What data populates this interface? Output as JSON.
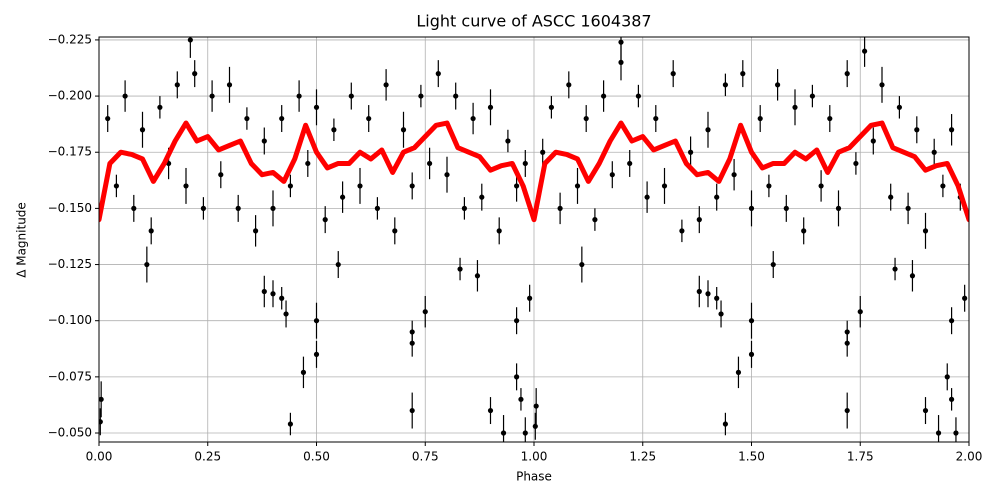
{
  "chart_data": {
    "type": "scatter",
    "title": "Light curve of ASCC 1604387",
    "xlabel": "Phase",
    "ylabel": "Δ Magnitude",
    "xlim": [
      0,
      2
    ],
    "ylim": [
      -0.046,
      -0.2263
    ],
    "xticks": [
      {
        "value": 0,
        "label": "0.00"
      },
      {
        "value": 0.25,
        "label": "0.25"
      },
      {
        "value": 0.5,
        "label": "0.50"
      },
      {
        "value": 0.75,
        "label": "0.75"
      },
      {
        "value": 1,
        "label": "1.00"
      },
      {
        "value": 1.25,
        "label": "1.25"
      },
      {
        "value": 1.5,
        "label": "1.50"
      },
      {
        "value": 1.75,
        "label": "1.75"
      },
      {
        "value": 2,
        "label": "2.00"
      }
    ],
    "yticks": [
      {
        "value": -0.225,
        "label": "−0.225"
      },
      {
        "value": -0.2,
        "label": "−0.200"
      },
      {
        "value": -0.175,
        "label": "−0.175"
      },
      {
        "value": -0.15,
        "label": "−0.150"
      },
      {
        "value": -0.125,
        "label": "−0.125"
      },
      {
        "value": -0.1,
        "label": "−0.100"
      },
      {
        "value": -0.075,
        "label": "−0.075"
      },
      {
        "value": -0.05,
        "label": "−0.050"
      }
    ],
    "grid": true,
    "series": [
      {
        "type": "scatter",
        "color": "#000000",
        "x": [
          0.02,
          0.04,
          0.06,
          0.08,
          0.1,
          0.12,
          0.14,
          0.16,
          0.18,
          0.2,
          0.22,
          0.24,
          0.26,
          0.28,
          0.3,
          0.32,
          0.34,
          0.36,
          0.38,
          0.4,
          0.42,
          0.44,
          0.46,
          0.48,
          0.5,
          0.52,
          0.54,
          0.56,
          0.58,
          0.6,
          0.62,
          0.64,
          0.66,
          0.68,
          0.7,
          0.72,
          0.74,
          0.76,
          0.78,
          0.8,
          0.82,
          0.84,
          0.86,
          0.88,
          0.9,
          0.92,
          0.94,
          0.96,
          0.98,
          0.005,
          0.003,
          0.44,
          0.47,
          0.5,
          0.5,
          0.4,
          0.42,
          0.38,
          0.43,
          0.72,
          0.72,
          0.72,
          0.75,
          0.9,
          0.93,
          0.96,
          0.97,
          0.98,
          0.96,
          0.11,
          0.55,
          0.83,
          0.87,
          0.99,
          0.21,
          1.02,
          1.04,
          1.06,
          1.08,
          1.1,
          1.12,
          1.14,
          1.16,
          1.18,
          1.2,
          1.22,
          1.24,
          1.26,
          1.28,
          1.3,
          1.32,
          1.34,
          1.36,
          1.38,
          1.4,
          1.42,
          1.44,
          1.46,
          1.48,
          1.5,
          1.52,
          1.54,
          1.56,
          1.58,
          1.6,
          1.62,
          1.64,
          1.66,
          1.68,
          1.7,
          1.72,
          1.74,
          1.76,
          1.78,
          1.8,
          1.82,
          1.84,
          1.86,
          1.88,
          1.9,
          1.92,
          1.94,
          1.96,
          1.98,
          1.005,
          1.003,
          1.44,
          1.47,
          1.5,
          1.5,
          1.4,
          1.42,
          1.38,
          1.43,
          1.72,
          1.72,
          1.72,
          1.75,
          1.9,
          1.93,
          1.95,
          1.96,
          1.97,
          1.96,
          1.11,
          1.55,
          1.83,
          1.87,
          1.99,
          1.2
        ],
        "values": [
          -0.19,
          -0.16,
          -0.2,
          -0.15,
          -0.185,
          -0.14,
          -0.195,
          -0.17,
          -0.205,
          -0.16,
          -0.21,
          -0.15,
          -0.2,
          -0.165,
          -0.205,
          -0.15,
          -0.19,
          -0.14,
          -0.18,
          -0.15,
          -0.19,
          -0.16,
          -0.2,
          -0.17,
          -0.195,
          -0.145,
          -0.185,
          -0.155,
          -0.2,
          -0.16,
          -0.19,
          -0.15,
          -0.205,
          -0.14,
          -0.185,
          -0.16,
          -0.2,
          -0.17,
          -0.21,
          -0.165,
          -0.2,
          -0.15,
          -0.19,
          -0.155,
          -0.195,
          -0.14,
          -0.18,
          -0.16,
          -0.17,
          -0.065,
          -0.055,
          -0.054,
          -0.077,
          -0.085,
          -0.1,
          -0.112,
          -0.11,
          -0.113,
          -0.103,
          -0.06,
          -0.09,
          -0.095,
          -0.104,
          -0.06,
          -0.05,
          -0.075,
          -0.065,
          -0.05,
          -0.1,
          -0.125,
          -0.125,
          -0.123,
          -0.12,
          -0.11,
          -0.225,
          -0.175,
          -0.195,
          -0.15,
          -0.205,
          -0.16,
          -0.19,
          -0.145,
          -0.2,
          -0.165,
          -0.215,
          -0.17,
          -0.2,
          -0.155,
          -0.19,
          -0.16,
          -0.21,
          -0.14,
          -0.175,
          -0.145,
          -0.185,
          -0.155,
          -0.205,
          -0.165,
          -0.21,
          -0.15,
          -0.19,
          -0.16,
          -0.205,
          -0.15,
          -0.195,
          -0.14,
          -0.2,
          -0.16,
          -0.19,
          -0.15,
          -0.21,
          -0.17,
          -0.22,
          -0.18,
          -0.205,
          -0.155,
          -0.195,
          -0.15,
          -0.185,
          -0.14,
          -0.175,
          -0.16,
          -0.185,
          -0.155,
          -0.062,
          -0.053,
          -0.054,
          -0.077,
          -0.085,
          -0.1,
          -0.112,
          -0.11,
          -0.113,
          -0.103,
          -0.06,
          -0.09,
          -0.095,
          -0.104,
          -0.06,
          -0.05,
          -0.075,
          -0.065,
          -0.05,
          -0.1,
          -0.125,
          -0.125,
          -0.123,
          -0.12,
          -0.11,
          -0.224
        ],
        "errors": [
          0.006,
          0.005,
          0.007,
          0.006,
          0.008,
          0.006,
          0.005,
          0.007,
          0.006,
          0.008,
          0.006,
          0.005,
          0.007,
          0.006,
          0.008,
          0.006,
          0.005,
          0.007,
          0.006,
          0.008,
          0.006,
          0.005,
          0.007,
          0.006,
          0.008,
          0.006,
          0.005,
          0.007,
          0.006,
          0.008,
          0.006,
          0.005,
          0.007,
          0.006,
          0.008,
          0.006,
          0.005,
          0.007,
          0.006,
          0.008,
          0.006,
          0.005,
          0.007,
          0.006,
          0.008,
          0.006,
          0.005,
          0.007,
          0.006,
          0.008,
          0.006,
          0.005,
          0.007,
          0.006,
          0.008,
          0.006,
          0.005,
          0.007,
          0.006,
          0.008,
          0.006,
          0.005,
          0.007,
          0.006,
          0.008,
          0.006,
          0.005,
          0.007,
          0.006,
          0.008,
          0.006,
          0.005,
          0.007,
          0.006,
          0.008,
          0.006,
          0.005,
          0.007,
          0.006,
          0.008,
          0.006,
          0.005,
          0.007,
          0.006,
          0.008,
          0.006,
          0.005,
          0.007,
          0.006,
          0.008,
          0.006,
          0.005,
          0.007,
          0.006,
          0.008,
          0.006,
          0.005,
          0.007,
          0.006,
          0.008,
          0.006,
          0.005,
          0.007,
          0.006,
          0.008,
          0.006,
          0.005,
          0.007,
          0.006,
          0.008,
          0.006,
          0.005,
          0.007,
          0.006,
          0.008,
          0.006,
          0.005,
          0.007,
          0.006,
          0.008,
          0.006,
          0.005,
          0.007,
          0.006,
          0.008,
          0.006,
          0.005,
          0.007,
          0.006,
          0.008,
          0.006,
          0.005,
          0.007,
          0.006,
          0.008,
          0.006,
          0.005,
          0.007,
          0.006,
          0.008,
          0.006,
          0.005,
          0.007,
          0.006,
          0.008,
          0.006,
          0.005,
          0.007,
          0.006,
          0.008
        ]
      },
      {
        "type": "line",
        "color": "#ff0000",
        "x": [
          0,
          0.025,
          0.05,
          0.075,
          0.1,
          0.125,
          0.15,
          0.175,
          0.2,
          0.225,
          0.25,
          0.275,
          0.3,
          0.325,
          0.35,
          0.375,
          0.4,
          0.425,
          0.45,
          0.475,
          0.5,
          0.525,
          0.55,
          0.575,
          0.6,
          0.625,
          0.65,
          0.675,
          0.7,
          0.725,
          0.75,
          0.775,
          0.8,
          0.825,
          0.85,
          0.875,
          0.9,
          0.925,
          0.95,
          0.975,
          1,
          1.025,
          1.05,
          1.075,
          1.1,
          1.125,
          1.15,
          1.175,
          1.2,
          1.225,
          1.25,
          1.275,
          1.3,
          1.325,
          1.35,
          1.375,
          1.4,
          1.425,
          1.45,
          1.475,
          1.5,
          1.525,
          1.55,
          1.575,
          1.6,
          1.625,
          1.65,
          1.675,
          1.7,
          1.725,
          1.75,
          1.775,
          1.8,
          1.825,
          1.85,
          1.875,
          1.9,
          1.925,
          1.95,
          1.975,
          2
        ],
        "values": [
          -0.145,
          -0.17,
          -0.175,
          -0.174,
          -0.172,
          -0.162,
          -0.17,
          -0.18,
          -0.188,
          -0.18,
          -0.182,
          -0.176,
          -0.178,
          -0.18,
          -0.17,
          -0.165,
          -0.166,
          -0.162,
          -0.172,
          -0.187,
          -0.175,
          -0.168,
          -0.17,
          -0.17,
          -0.175,
          -0.172,
          -0.176,
          -0.166,
          -0.175,
          -0.177,
          -0.182,
          -0.187,
          -0.188,
          -0.177,
          -0.175,
          -0.173,
          -0.167,
          -0.169,
          -0.17,
          -0.16,
          -0.145,
          -0.17,
          -0.175,
          -0.174,
          -0.172,
          -0.162,
          -0.17,
          -0.18,
          -0.188,
          -0.18,
          -0.182,
          -0.176,
          -0.178,
          -0.18,
          -0.17,
          -0.165,
          -0.166,
          -0.162,
          -0.172,
          -0.187,
          -0.175,
          -0.168,
          -0.17,
          -0.17,
          -0.175,
          -0.172,
          -0.176,
          -0.166,
          -0.175,
          -0.177,
          -0.182,
          -0.187,
          -0.188,
          -0.177,
          -0.175,
          -0.173,
          -0.167,
          -0.169,
          -0.17,
          -0.16,
          -0.145
        ]
      }
    ]
  }
}
